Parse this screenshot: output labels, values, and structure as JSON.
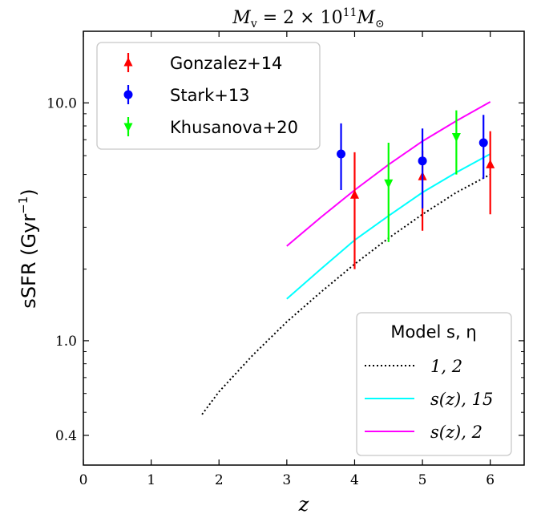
{
  "chart_data": {
    "type": "scatter",
    "title": "M_v = 2 × 10^11 M_⊙",
    "xlabel": "z",
    "ylabel": "sSFR (Gyr⁻¹)",
    "xlim": [
      0,
      6.5
    ],
    "ylim": [
      0.3,
      20
    ],
    "y_scale": "log",
    "x_ticks": [
      0,
      1,
      2,
      3,
      4,
      5,
      6
    ],
    "x_tick_labels": [
      "0",
      "1",
      "2",
      "3",
      "4",
      "5",
      "6"
    ],
    "y_ticks": [
      0.4,
      1.0,
      10.0
    ],
    "y_tick_labels": [
      "0.4",
      "1.0",
      "10.0"
    ],
    "grid": false,
    "observations": [
      {
        "name": "Gonzalez+14",
        "color": "#ff0000",
        "marker": "triangle-up",
        "points": [
          {
            "x": 4.0,
            "y": 4.1,
            "ylo": 2.0,
            "yhi": 6.2
          },
          {
            "x": 5.0,
            "y": 4.9,
            "ylo": 2.9,
            "yhi": 6.3
          },
          {
            "x": 6.0,
            "y": 5.5,
            "ylo": 3.4,
            "yhi": 7.6
          }
        ]
      },
      {
        "name": "Stark+13",
        "color": "#0000ff",
        "marker": "circle",
        "points": [
          {
            "x": 3.8,
            "y": 6.1,
            "ylo": 4.3,
            "yhi": 8.2
          },
          {
            "x": 5.0,
            "y": 5.7,
            "ylo": 3.6,
            "yhi": 7.8
          },
          {
            "x": 5.9,
            "y": 6.8,
            "ylo": 4.8,
            "yhi": 8.9
          }
        ]
      },
      {
        "name": "Khusanova+20",
        "color": "#00ff00",
        "marker": "triangle-down",
        "points": [
          {
            "x": 4.5,
            "y": 4.6,
            "ylo": 2.6,
            "yhi": 6.8
          },
          {
            "x": 5.5,
            "y": 7.2,
            "ylo": 5.0,
            "yhi": 9.3
          }
        ]
      }
    ],
    "models_legend_title": "Model s, η",
    "models": [
      {
        "label": "1, 2",
        "color": "#000000",
        "style": "dotted",
        "x": [
          1.75,
          2.0,
          2.5,
          3.0,
          3.5,
          4.0,
          4.5,
          5.0,
          5.5,
          6.0
        ],
        "y": [
          0.49,
          0.61,
          0.87,
          1.2,
          1.6,
          2.1,
          2.7,
          3.4,
          4.2,
          5.0
        ]
      },
      {
        "label": "s(z), 15",
        "color": "#00ffff",
        "style": "solid",
        "x": [
          3.0,
          3.5,
          4.0,
          4.5,
          5.0,
          5.5,
          6.0
        ],
        "y": [
          1.5,
          2.0,
          2.65,
          3.35,
          4.2,
          5.1,
          6.1
        ]
      },
      {
        "label": "s(z), 2",
        "color": "#ff00ff",
        "style": "solid",
        "x": [
          3.0,
          3.5,
          4.0,
          4.5,
          5.0,
          5.5,
          6.0
        ],
        "y": [
          2.5,
          3.3,
          4.3,
          5.5,
          6.9,
          8.4,
          10.1
        ]
      }
    ],
    "legend_placement": [
      "top-left",
      "bottom-right"
    ]
  }
}
